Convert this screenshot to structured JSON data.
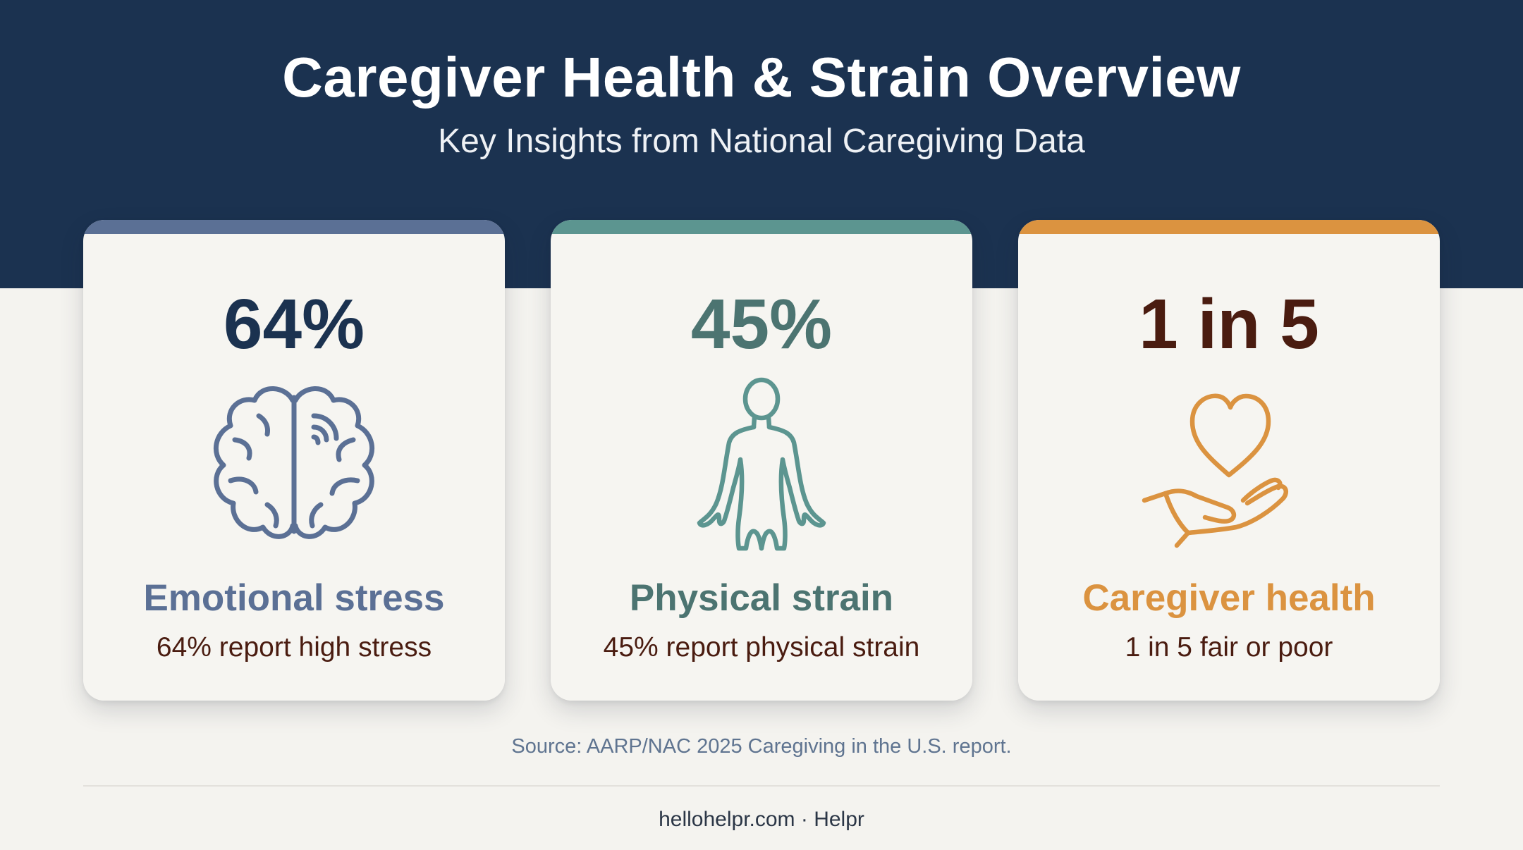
{
  "header": {
    "title": "Caregiver Health & Strain Overview",
    "subtitle": "Key Insights from National Caregiving Data"
  },
  "cards": [
    {
      "stat": "64%",
      "label": "Emotional stress",
      "description": "64% report high stress",
      "icon": "brain-icon",
      "accent_color": "#5b7095",
      "stat_color": "#1b3250"
    },
    {
      "stat": "45%",
      "label": "Physical strain",
      "description": "45% report physical strain",
      "icon": "human-body-icon",
      "accent_color": "#5c9590",
      "stat_color": "#4c7471"
    },
    {
      "stat": "1 in 5",
      "label": "Caregiver health",
      "description": "1 in 5 fair or poor",
      "icon": "heart-in-hand-icon",
      "accent_color": "#db9340",
      "stat_color": "#4a1c10"
    }
  ],
  "source": "Source: AARP/NAC 2025 Caregiving in the U.S. report.",
  "footer": "hellohelpr.com · Helpr"
}
